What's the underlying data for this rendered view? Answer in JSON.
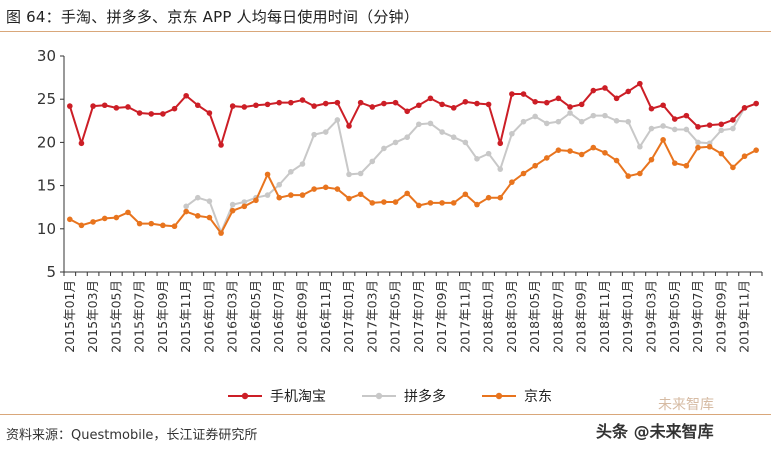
{
  "figure": {
    "title": "图 64：手淘、拼多多、京东 APP 人均每日使用时间（分钟）",
    "source": "资料来源：Questmobile，长江证券研究所",
    "watermark": "头条 @未来智库",
    "watermark_brand": "未来智库"
  },
  "chart_data": {
    "type": "line",
    "title": "图 64：手淘、拼多多、京东 APP 人均每日使用时间（分钟）",
    "xlabel": "",
    "ylabel": "",
    "ylim": [
      5,
      30
    ],
    "yticks": [
      5,
      10,
      15,
      20,
      25,
      30
    ],
    "grid": false,
    "legend_position": "bottom",
    "x": [
      "2015年01月",
      "2015年02月",
      "2015年03月",
      "2015年04月",
      "2015年05月",
      "2015年06月",
      "2015年07月",
      "2015年08月",
      "2015年09月",
      "2015年10月",
      "2015年11月",
      "2015年12月",
      "2016年01月",
      "2016年02月",
      "2016年03月",
      "2016年04月",
      "2016年05月",
      "2016年06月",
      "2016年07月",
      "2016年08月",
      "2016年09月",
      "2016年10月",
      "2016年11月",
      "2016年12月",
      "2017年01月",
      "2017年02月",
      "2017年03月",
      "2017年04月",
      "2017年05月",
      "2017年06月",
      "2017年07月",
      "2017年08月",
      "2017年09月",
      "2017年10月",
      "2017年11月",
      "2017年12月",
      "2018年01月",
      "2018年02月",
      "2018年03月",
      "2018年04月",
      "2018年05月",
      "2018年06月",
      "2018年07月",
      "2018年08月",
      "2018年09月",
      "2018年10月",
      "2018年11月",
      "2018年12月",
      "2019年01月",
      "2019年02月",
      "2019年03月",
      "2019年04月",
      "2019年05月",
      "2019年06月",
      "2019年07月",
      "2019年08月",
      "2019年09月",
      "2019年10月",
      "2019年11月",
      "2019年12月"
    ],
    "xtick_labels": [
      "2015年01月",
      "2015年03月",
      "2015年05月",
      "2015年07月",
      "2015年09月",
      "2015年11月",
      "2016年01月",
      "2016年03月",
      "2016年05月",
      "2016年07月",
      "2016年09月",
      "2016年11月",
      "2017年01月",
      "2017年03月",
      "2017年05月",
      "2017年07月",
      "2017年09月",
      "2017年11月",
      "2018年01月",
      "2018年03月",
      "2018年05月",
      "2018年07月",
      "2018年09月",
      "2018年11月",
      "2019年01月",
      "2019年03月",
      "2019年05月",
      "2019年07月",
      "2019年09月",
      "2019年11月"
    ],
    "series": [
      {
        "name": "手机淘宝",
        "color": "#cc1e26",
        "values": [
          24.2,
          19.9,
          24.2,
          24.3,
          24.0,
          24.1,
          23.4,
          23.3,
          23.3,
          23.9,
          25.4,
          24.3,
          23.4,
          19.7,
          24.2,
          24.1,
          24.3,
          24.4,
          24.6,
          24.6,
          24.9,
          24.2,
          24.5,
          24.6,
          21.9,
          24.6,
          24.1,
          24.5,
          24.6,
          23.6,
          24.3,
          25.1,
          24.4,
          24.0,
          24.7,
          24.5,
          24.4,
          19.9,
          25.6,
          25.6,
          24.7,
          24.6,
          25.1,
          24.1,
          24.4,
          26.0,
          26.3,
          25.1,
          25.9,
          26.8,
          23.9,
          24.3,
          22.7,
          23.1,
          21.8,
          22.0,
          22.1,
          22.6,
          24.0,
          24.5
        ]
      },
      {
        "name": "拼多多",
        "color": "#c8c8c8",
        "values": [
          null,
          null,
          null,
          null,
          null,
          null,
          null,
          null,
          null,
          null,
          12.6,
          13.6,
          13.2,
          9.6,
          12.8,
          13.1,
          13.6,
          13.9,
          15.1,
          16.6,
          17.5,
          20.9,
          21.2,
          22.6,
          16.3,
          16.4,
          17.8,
          19.3,
          20.0,
          20.6,
          22.1,
          22.2,
          21.2,
          20.6,
          20.0,
          18.1,
          18.7,
          16.9,
          21.0,
          22.4,
          23.0,
          22.2,
          22.4,
          23.4,
          22.4,
          23.1,
          23.1,
          22.5,
          22.4,
          19.5,
          21.6,
          21.9,
          21.5,
          21.5,
          20.0,
          19.9,
          21.4,
          21.6,
          24.0,
          24.5
        ]
      },
      {
        "name": "京东",
        "color": "#e8741e",
        "values": [
          11.1,
          10.4,
          10.8,
          11.2,
          11.3,
          11.9,
          10.6,
          10.6,
          10.4,
          10.3,
          12.0,
          11.5,
          11.3,
          9.5,
          12.1,
          12.6,
          13.3,
          16.3,
          13.6,
          13.9,
          13.9,
          14.6,
          14.8,
          14.6,
          13.5,
          14.0,
          13.0,
          13.1,
          13.1,
          14.1,
          12.7,
          13.0,
          13.0,
          13.0,
          14.0,
          12.8,
          13.6,
          13.6,
          15.4,
          16.4,
          17.3,
          18.2,
          19.1,
          19.0,
          18.6,
          19.4,
          18.8,
          17.9,
          16.1,
          16.4,
          18.0,
          20.3,
          17.6,
          17.3,
          19.4,
          19.5,
          18.7,
          17.1,
          18.4,
          19.1
        ]
      }
    ]
  }
}
